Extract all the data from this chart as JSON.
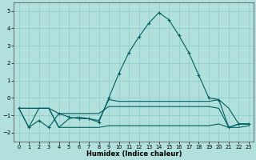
{
  "xlabel": "Humidex (Indice chaleur)",
  "xlim": [
    -0.5,
    23.5
  ],
  "ylim": [
    -2.5,
    5.5
  ],
  "yticks": [
    -2,
    -1,
    0,
    1,
    2,
    3,
    4,
    5
  ],
  "xticks": [
    0,
    1,
    2,
    3,
    4,
    5,
    6,
    7,
    8,
    9,
    10,
    11,
    12,
    13,
    14,
    15,
    16,
    17,
    18,
    19,
    20,
    21,
    22,
    23
  ],
  "bg_color": "#b2e0dc",
  "grid_color": "#8eccc8",
  "line_color": "#006060",
  "main_x": [
    0,
    1,
    2,
    3,
    4,
    5,
    6,
    7,
    8,
    9,
    10,
    11,
    12,
    13,
    14,
    15,
    16,
    17,
    18,
    19,
    20,
    21,
    22,
    23
  ],
  "main_y": [
    -0.6,
    -1.7,
    -1.3,
    -1.7,
    -0.9,
    -1.1,
    -1.2,
    -1.2,
    -1.4,
    0.0,
    1.4,
    2.6,
    3.5,
    4.3,
    4.9,
    4.5,
    3.6,
    2.6,
    1.3,
    0.0,
    -0.1,
    -1.7,
    -1.5,
    -1.5
  ],
  "line1_x": [
    0,
    1,
    2,
    3,
    4,
    5,
    6,
    7,
    8,
    9,
    10,
    11,
    12,
    13,
    14,
    15,
    16,
    17,
    18,
    19,
    20,
    21,
    22,
    23
  ],
  "line1_y": [
    -0.6,
    -1.7,
    -0.6,
    -0.6,
    -0.9,
    -0.9,
    -0.9,
    -0.9,
    -0.9,
    -0.5,
    -0.5,
    -0.5,
    -0.5,
    -0.5,
    -0.5,
    -0.5,
    -0.5,
    -0.5,
    -0.5,
    -0.5,
    -0.6,
    -1.7,
    -1.5,
    -1.5
  ],
  "line2_x": [
    0,
    2,
    3,
    4,
    5,
    6,
    7,
    8,
    9,
    10,
    11,
    12,
    13,
    14,
    15,
    16,
    17,
    18,
    19,
    20,
    21,
    22,
    23
  ],
  "line2_y": [
    -0.6,
    -0.6,
    -0.6,
    -1.7,
    -1.7,
    -1.7,
    -1.7,
    -1.7,
    -1.6,
    -1.6,
    -1.6,
    -1.6,
    -1.6,
    -1.6,
    -1.6,
    -1.6,
    -1.6,
    -1.6,
    -1.6,
    -1.5,
    -1.7,
    -1.7,
    -1.6
  ],
  "line3_x": [
    0,
    2,
    3,
    4,
    5,
    6,
    7,
    8,
    9,
    10,
    11,
    12,
    13,
    14,
    15,
    16,
    17,
    18,
    19,
    20,
    21,
    22,
    23
  ],
  "line3_y": [
    -0.6,
    -0.6,
    -0.6,
    -1.7,
    -1.2,
    -1.1,
    -1.2,
    -1.3,
    -0.1,
    -0.2,
    -0.2,
    -0.2,
    -0.2,
    -0.2,
    -0.2,
    -0.2,
    -0.2,
    -0.2,
    -0.2,
    -0.1,
    -0.6,
    -1.5,
    -1.5
  ]
}
